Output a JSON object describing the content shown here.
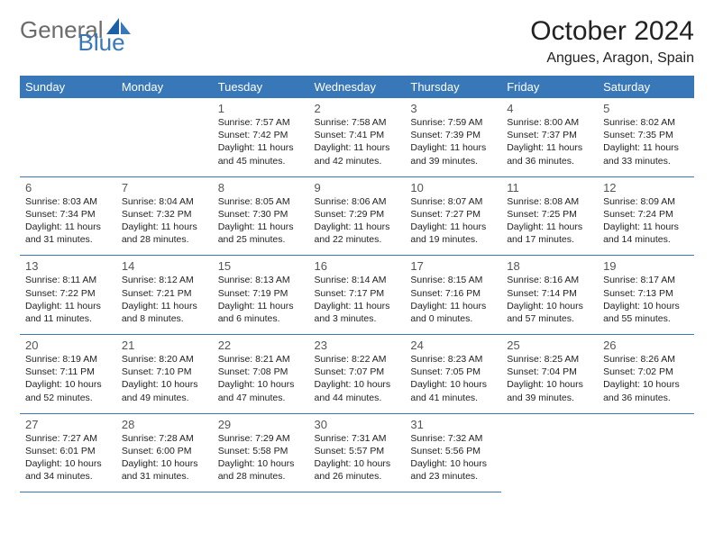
{
  "brand": {
    "part1": "General",
    "part2": "Blue"
  },
  "title": "October 2024",
  "location": "Angues, Aragon, Spain",
  "header_bg": "#3878b8",
  "header_fg": "#ffffff",
  "row_border": "#3878b8",
  "text_color": "#222222",
  "daynum_color": "#555555",
  "logo_gray": "#6b6b6b",
  "logo_blue": "#3878b8",
  "day_headers": [
    "Sunday",
    "Monday",
    "Tuesday",
    "Wednesday",
    "Thursday",
    "Friday",
    "Saturday"
  ],
  "weeks": [
    [
      null,
      null,
      {
        "n": "1",
        "sr": "7:57 AM",
        "ss": "7:42 PM",
        "dl": "11 hours and 45 minutes."
      },
      {
        "n": "2",
        "sr": "7:58 AM",
        "ss": "7:41 PM",
        "dl": "11 hours and 42 minutes."
      },
      {
        "n": "3",
        "sr": "7:59 AM",
        "ss": "7:39 PM",
        "dl": "11 hours and 39 minutes."
      },
      {
        "n": "4",
        "sr": "8:00 AM",
        "ss": "7:37 PM",
        "dl": "11 hours and 36 minutes."
      },
      {
        "n": "5",
        "sr": "8:02 AM",
        "ss": "7:35 PM",
        "dl": "11 hours and 33 minutes."
      }
    ],
    [
      {
        "n": "6",
        "sr": "8:03 AM",
        "ss": "7:34 PM",
        "dl": "11 hours and 31 minutes."
      },
      {
        "n": "7",
        "sr": "8:04 AM",
        "ss": "7:32 PM",
        "dl": "11 hours and 28 minutes."
      },
      {
        "n": "8",
        "sr": "8:05 AM",
        "ss": "7:30 PM",
        "dl": "11 hours and 25 minutes."
      },
      {
        "n": "9",
        "sr": "8:06 AM",
        "ss": "7:29 PM",
        "dl": "11 hours and 22 minutes."
      },
      {
        "n": "10",
        "sr": "8:07 AM",
        "ss": "7:27 PM",
        "dl": "11 hours and 19 minutes."
      },
      {
        "n": "11",
        "sr": "8:08 AM",
        "ss": "7:25 PM",
        "dl": "11 hours and 17 minutes."
      },
      {
        "n": "12",
        "sr": "8:09 AM",
        "ss": "7:24 PM",
        "dl": "11 hours and 14 minutes."
      }
    ],
    [
      {
        "n": "13",
        "sr": "8:11 AM",
        "ss": "7:22 PM",
        "dl": "11 hours and 11 minutes."
      },
      {
        "n": "14",
        "sr": "8:12 AM",
        "ss": "7:21 PM",
        "dl": "11 hours and 8 minutes."
      },
      {
        "n": "15",
        "sr": "8:13 AM",
        "ss": "7:19 PM",
        "dl": "11 hours and 6 minutes."
      },
      {
        "n": "16",
        "sr": "8:14 AM",
        "ss": "7:17 PM",
        "dl": "11 hours and 3 minutes."
      },
      {
        "n": "17",
        "sr": "8:15 AM",
        "ss": "7:16 PM",
        "dl": "11 hours and 0 minutes."
      },
      {
        "n": "18",
        "sr": "8:16 AM",
        "ss": "7:14 PM",
        "dl": "10 hours and 57 minutes."
      },
      {
        "n": "19",
        "sr": "8:17 AM",
        "ss": "7:13 PM",
        "dl": "10 hours and 55 minutes."
      }
    ],
    [
      {
        "n": "20",
        "sr": "8:19 AM",
        "ss": "7:11 PM",
        "dl": "10 hours and 52 minutes."
      },
      {
        "n": "21",
        "sr": "8:20 AM",
        "ss": "7:10 PM",
        "dl": "10 hours and 49 minutes."
      },
      {
        "n": "22",
        "sr": "8:21 AM",
        "ss": "7:08 PM",
        "dl": "10 hours and 47 minutes."
      },
      {
        "n": "23",
        "sr": "8:22 AM",
        "ss": "7:07 PM",
        "dl": "10 hours and 44 minutes."
      },
      {
        "n": "24",
        "sr": "8:23 AM",
        "ss": "7:05 PM",
        "dl": "10 hours and 41 minutes."
      },
      {
        "n": "25",
        "sr": "8:25 AM",
        "ss": "7:04 PM",
        "dl": "10 hours and 39 minutes."
      },
      {
        "n": "26",
        "sr": "8:26 AM",
        "ss": "7:02 PM",
        "dl": "10 hours and 36 minutes."
      }
    ],
    [
      {
        "n": "27",
        "sr": "7:27 AM",
        "ss": "6:01 PM",
        "dl": "10 hours and 34 minutes."
      },
      {
        "n": "28",
        "sr": "7:28 AM",
        "ss": "6:00 PM",
        "dl": "10 hours and 31 minutes."
      },
      {
        "n": "29",
        "sr": "7:29 AM",
        "ss": "5:58 PM",
        "dl": "10 hours and 28 minutes."
      },
      {
        "n": "30",
        "sr": "7:31 AM",
        "ss": "5:57 PM",
        "dl": "10 hours and 26 minutes."
      },
      {
        "n": "31",
        "sr": "7:32 AM",
        "ss": "5:56 PM",
        "dl": "10 hours and 23 minutes."
      },
      null,
      null
    ]
  ],
  "labels": {
    "sunrise": "Sunrise:",
    "sunset": "Sunset:",
    "daylight": "Daylight:"
  }
}
